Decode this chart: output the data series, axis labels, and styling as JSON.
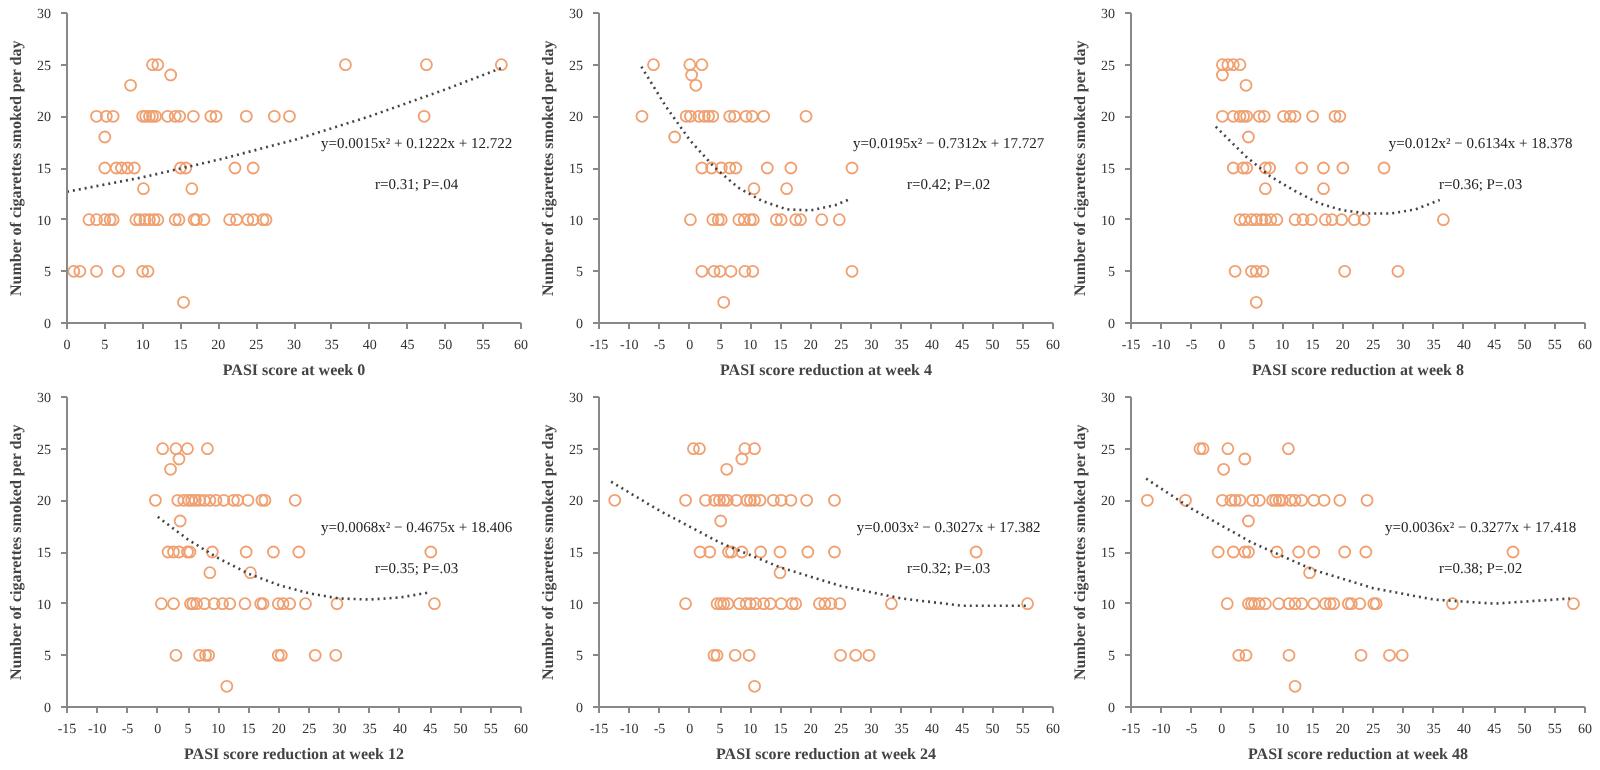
{
  "chart_data": [
    {
      "type": "scatter",
      "xlabel": "PASI score at week 0",
      "ylabel": "Number of cigarettes smoked per day",
      "xlim": [
        0,
        60
      ],
      "xticks": [
        0,
        5,
        10,
        15,
        20,
        25,
        30,
        35,
        40,
        45,
        50,
        55,
        60
      ],
      "ylim": [
        0,
        30
      ],
      "yticks": [
        0,
        5,
        10,
        15,
        20,
        25,
        30
      ],
      "grid": false,
      "annotations": [
        "y=0.0015x² + 0.1222x + 12.722",
        "r=0.31; P=.04"
      ],
      "series": [
        {
          "color": "#f0a070",
          "marker": "circle",
          "x": [
            11.3,
            12.0,
            36.8,
            47.5,
            57.4,
            13.7,
            8.4,
            3.9,
            5.2,
            6.1,
            10,
            10.4,
            10.9,
            11.3,
            11.7,
            13.3,
            14.3,
            14.9,
            16.7,
            19,
            19.7,
            23.7,
            27.4,
            29.4,
            47.2,
            5.0,
            5,
            6.5,
            7.2,
            8,
            8.9,
            15,
            15.7,
            24.6,
            22.2,
            10.1,
            16.5,
            2.9,
            3.9,
            5,
            5.7,
            6.1,
            9.1,
            9.6,
            10.3,
            10.9,
            11.5,
            12,
            14.3,
            14.8,
            16.8,
            17.1,
            18.1,
            21.5,
            22.4,
            23.9,
            24.6,
            25.9,
            26.3,
            0.9,
            1.7,
            3.9,
            6.8,
            10,
            10.7,
            15.4
          ],
          "values": [
            25,
            25,
            25,
            25,
            25,
            24,
            23,
            20,
            20,
            20,
            20,
            20,
            20,
            20,
            20,
            20,
            20,
            20,
            20,
            20,
            20,
            20,
            20,
            20,
            20,
            18,
            15,
            15,
            15,
            15,
            15,
            15,
            15,
            15,
            15,
            13,
            13,
            10,
            10,
            10,
            10,
            10,
            10,
            10,
            10,
            10,
            10,
            10,
            10,
            10,
            10,
            10,
            10,
            10,
            10,
            10,
            10,
            10,
            10,
            5,
            5,
            5,
            5,
            5,
            5,
            2
          ]
        },
        {
          "type": "line",
          "color": "#444444",
          "marker": "none",
          "line_style": "dotted",
          "x": [
            0,
            10,
            20,
            30,
            40,
            50,
            57.5
          ],
          "values": [
            12.7,
            14.1,
            15.8,
            17.7,
            20.0,
            22.6,
            24.7
          ]
        }
      ]
    },
    {
      "type": "scatter",
      "xlabel": "PASI score reduction at week 4",
      "ylabel": "Number of cigarettes smoked per day",
      "xlim": [
        -15,
        60
      ],
      "xticks": [
        -15,
        -10,
        -5,
        0,
        5,
        10,
        15,
        20,
        25,
        30,
        35,
        40,
        45,
        50,
        55,
        60
      ],
      "ylim": [
        0,
        30
      ],
      "yticks": [
        0,
        5,
        10,
        15,
        20,
        25,
        30
      ],
      "grid": false,
      "annotations": [
        "y=0.0195x² − 0.7312x + 17.727",
        "r=0.42; P=.02"
      ],
      "series": [
        {
          "color": "#f0a070",
          "marker": "circle",
          "x": [
            -6,
            0,
            2,
            0.3,
            1.0,
            -7.9,
            -0.6,
            0.1,
            1.5,
            2.4,
            3.1,
            3.8,
            6.6,
            7.4,
            9.3,
            10.3,
            12.2,
            19.2,
            -2.5,
            2,
            3.6,
            5.2,
            6.6,
            7.6,
            12.8,
            16.7,
            26.8,
            10.6,
            16,
            0.1,
            3.8,
            4.7,
            5.2,
            8.1,
            9,
            10,
            10.5,
            14.3,
            15.1,
            17.5,
            18.3,
            21.8,
            24.7,
            2,
            4,
            5,
            6.8,
            9.1,
            10.4,
            26.8,
            5.6
          ],
          "values": [
            25,
            25,
            25,
            24,
            23,
            20,
            20,
            20,
            20,
            20,
            20,
            20,
            20,
            20,
            20,
            20,
            20,
            20,
            18,
            15,
            15,
            15,
            15,
            15,
            15,
            15,
            15,
            13,
            13,
            10,
            10,
            10,
            10,
            10,
            10,
            10,
            10,
            10,
            10,
            10,
            10,
            10,
            10,
            5,
            5,
            5,
            5,
            5,
            5,
            5,
            2
          ]
        },
        {
          "type": "line",
          "color": "#444444",
          "marker": "none",
          "line_style": "dotted",
          "x": [
            -8,
            -4,
            0,
            4,
            8,
            12,
            16,
            20,
            24,
            26.5
          ],
          "values": [
            24.8,
            21.0,
            17.7,
            15.1,
            13.1,
            11.8,
            11.0,
            10.9,
            11.4,
            12.0
          ]
        }
      ]
    },
    {
      "type": "scatter",
      "xlabel": "PASI score reduction at week 8",
      "ylabel": "Number of cigarettes smoked per day",
      "xlim": [
        -15,
        60
      ],
      "xticks": [
        -15,
        -10,
        -5,
        0,
        5,
        10,
        15,
        20,
        25,
        30,
        35,
        40,
        45,
        50,
        55,
        60
      ],
      "ylim": [
        0,
        30
      ],
      "yticks": [
        0,
        5,
        10,
        15,
        20,
        25,
        30
      ],
      "grid": false,
      "annotations": [
        "y=0.012x² − 0.6134x + 18.378",
        "r=0.36; P=.03"
      ],
      "series": [
        {
          "color": "#f0a070",
          "marker": "circle",
          "x": [
            0.1,
            1,
            1.9,
            3,
            0.1,
            4,
            0.1,
            1.9,
            3,
            3.6,
            4.1,
            6.2,
            7,
            10.2,
            11.3,
            12.1,
            15,
            18.7,
            19.5,
            4.4,
            1.9,
            3.5,
            4.1,
            7.2,
            7.9,
            13.2,
            16.8,
            20,
            26.8,
            7.2,
            16.8,
            3,
            3.8,
            4.9,
            5.7,
            6.6,
            7.2,
            8.1,
            9.1,
            12.1,
            13.4,
            14.8,
            17.1,
            18.2,
            19.8,
            21.9,
            23.5,
            36.6,
            2.2,
            4.9,
            5.7,
            6.8,
            20.3,
            29.1,
            5.7
          ],
          "values": [
            25,
            25,
            25,
            25,
            24,
            23,
            20,
            20,
            20,
            20,
            20,
            20,
            20,
            20,
            20,
            20,
            20,
            20,
            20,
            18,
            15,
            15,
            15,
            15,
            15,
            15,
            15,
            15,
            15,
            13,
            13,
            10,
            10,
            10,
            10,
            10,
            10,
            10,
            10,
            10,
            10,
            10,
            10,
            10,
            10,
            10,
            10,
            10,
            5,
            5,
            5,
            5,
            5,
            5,
            2
          ]
        },
        {
          "type": "line",
          "color": "#444444",
          "marker": "none",
          "line_style": "dotted",
          "x": [
            -1,
            4,
            8,
            12,
            16,
            20,
            24,
            28,
            32,
            36
          ],
          "values": [
            19.0,
            16.1,
            14.2,
            12.8,
            11.6,
            10.9,
            10.6,
            10.6,
            11.0,
            11.9
          ]
        }
      ]
    },
    {
      "type": "scatter",
      "xlabel": "PASI score reduction at week 12",
      "ylabel": "Number of cigarettes smoked per day",
      "xlim": [
        -15,
        60
      ],
      "xticks": [
        -15,
        -10,
        -5,
        0,
        5,
        10,
        15,
        20,
        25,
        30,
        35,
        40,
        45,
        50,
        55,
        60
      ],
      "ylim": [
        0,
        30
      ],
      "yticks": [
        0,
        5,
        10,
        15,
        20,
        25,
        30
      ],
      "grid": false,
      "annotations": [
        "y=0.0068x² − 0.4675x + 18.406",
        "r=0.35; P=.03"
      ],
      "series": [
        {
          "color": "#f0a070",
          "marker": "circle",
          "x": [
            0.8,
            3,
            4.9,
            8.2,
            3.5,
            2.1,
            -0.4,
            3.3,
            4.3,
            5.1,
            5.6,
            6.2,
            6.9,
            7.7,
            8.6,
            9.6,
            10.9,
            12.5,
            13.2,
            14.9,
            17.2,
            17.7,
            22.7,
            3.7,
            1.7,
            2.6,
            3.5,
            4.9,
            5.3,
            9,
            14.6,
            19.1,
            23.3,
            45.1,
            8.6,
            15.3,
            0.6,
            2.6,
            5.4,
            5.8,
            6.4,
            7.7,
            9.3,
            10.7,
            11.9,
            14.4,
            17,
            17.4,
            19.9,
            20.7,
            21.8,
            24.4,
            29.6,
            45.7,
            3,
            6.9,
            7.9,
            8.4,
            19.9,
            20.4,
            26,
            29.4,
            11.4
          ],
          "values": [
            25,
            25,
            25,
            25,
            24,
            23,
            20,
            20,
            20,
            20,
            20,
            20,
            20,
            20,
            20,
            20,
            20,
            20,
            20,
            20,
            20,
            20,
            20,
            18,
            15,
            15,
            15,
            15,
            15,
            15,
            15,
            15,
            15,
            15,
            13,
            13,
            10,
            10,
            10,
            10,
            10,
            10,
            10,
            10,
            10,
            10,
            10,
            10,
            10,
            10,
            10,
            10,
            10,
            10,
            5,
            5,
            5,
            5,
            5,
            5,
            5,
            5,
            2
          ]
        },
        {
          "type": "line",
          "color": "#444444",
          "marker": "none",
          "line_style": "dotted",
          "x": [
            0,
            5,
            10,
            15,
            20,
            25,
            30,
            35,
            40,
            45
          ],
          "values": [
            18.4,
            16.2,
            14.4,
            12.9,
            11.8,
            11.0,
            10.5,
            10.4,
            10.6,
            11.1
          ]
        }
      ]
    },
    {
      "type": "scatter",
      "xlabel": "PASI score reduction at week 24",
      "ylabel": "Number of cigarettes smoked per day",
      "xlim": [
        -15,
        60
      ],
      "xticks": [
        -15,
        -10,
        -5,
        0,
        5,
        10,
        15,
        20,
        25,
        30,
        35,
        40,
        45,
        50,
        55,
        60
      ],
      "ylim": [
        0,
        30
      ],
      "yticks": [
        0,
        5,
        10,
        15,
        20,
        25,
        30
      ],
      "grid": false,
      "annotations": [
        "y=0.003x² − 0.3027x + 17.382",
        "r=0.32; P=.03"
      ],
      "series": [
        {
          "color": "#f0a070",
          "marker": "circle",
          "x": [
            0.6,
            1.6,
            9.1,
            10.7,
            8.6,
            6.1,
            -12.4,
            -0.7,
            2.6,
            4.1,
            4.9,
            5.6,
            6.2,
            7.7,
            9.4,
            10,
            10.7,
            11.6,
            13.8,
            15.1,
            16.7,
            19.3,
            23.9,
            5.1,
            1.7,
            3.3,
            6.4,
            6.9,
            8.6,
            11.7,
            14.9,
            19.5,
            23.9,
            47.3,
            14.9,
            -0.7,
            4.5,
            5.1,
            5.6,
            6.3,
            8.2,
            9.3,
            10,
            10.9,
            12.2,
            13.3,
            15.1,
            16.9,
            17.5,
            21.4,
            22.3,
            23.3,
            24.8,
            33.3,
            55.8,
            4,
            4.5,
            7.5,
            9.8,
            24.9,
            27.4,
            29.6,
            10.7
          ],
          "values": [
            25,
            25,
            25,
            25,
            24,
            23,
            20,
            20,
            20,
            20,
            20,
            20,
            20,
            20,
            20,
            20,
            20,
            20,
            20,
            20,
            20,
            20,
            20,
            18,
            15,
            15,
            15,
            15,
            15,
            15,
            15,
            15,
            15,
            15,
            13,
            10,
            10,
            10,
            10,
            10,
            10,
            10,
            10,
            10,
            10,
            10,
            10,
            10,
            10,
            10,
            10,
            10,
            10,
            10,
            10,
            5,
            5,
            5,
            5,
            5,
            5,
            5,
            2
          ]
        },
        {
          "type": "line",
          "color": "#444444",
          "marker": "none",
          "line_style": "dotted",
          "x": [
            -13,
            -5,
            5,
            15,
            25,
            35,
            45,
            56
          ],
          "values": [
            21.8,
            19.0,
            15.9,
            13.5,
            11.7,
            10.5,
            9.8,
            9.8
          ]
        }
      ]
    },
    {
      "type": "scatter",
      "xlabel": "PASI score reduction at week 48",
      "ylabel": "Number of cigarettes smoked per day",
      "xlim": [
        -15,
        60
      ],
      "xticks": [
        -15,
        -10,
        -5,
        0,
        5,
        10,
        15,
        20,
        25,
        30,
        35,
        40,
        45,
        50,
        55,
        60
      ],
      "ylim": [
        0,
        30
      ],
      "yticks": [
        0,
        5,
        10,
        15,
        20,
        25,
        30
      ],
      "grid": false,
      "annotations": [
        "y=0.0036x² − 0.3277x + 17.418",
        "r=0.38; P=.02"
      ],
      "series": [
        {
          "color": "#f0a070",
          "marker": "circle",
          "x": [
            -3.6,
            -3.1,
            1,
            11,
            3.8,
            0.3,
            -12.3,
            -6,
            0.1,
            1.5,
            2.2,
            3,
            5.1,
            6.2,
            8.4,
            8.9,
            9.5,
            10,
            11.3,
            12.1,
            13.2,
            15.2,
            16.9,
            19.5,
            24,
            4.4,
            -0.6,
            1.9,
            3.8,
            4.4,
            9.1,
            12.7,
            15.2,
            20.3,
            23.8,
            48.1,
            14.5,
            0.9,
            4.4,
            4.9,
            5.4,
            6.2,
            7.2,
            9.4,
            11.1,
            12.1,
            13.2,
            15.2,
            17.1,
            17.9,
            18.5,
            20.9,
            21.4,
            22.8,
            25.1,
            25.5,
            38.1,
            58.1,
            2.8,
            4,
            11.1,
            23,
            27.7,
            29.8,
            12.1
          ],
          "values": [
            25,
            25,
            25,
            25,
            24,
            23,
            20,
            20,
            20,
            20,
            20,
            20,
            20,
            20,
            20,
            20,
            20,
            20,
            20,
            20,
            20,
            20,
            20,
            20,
            20,
            18,
            15,
            15,
            15,
            15,
            15,
            15,
            15,
            15,
            15,
            15,
            13,
            10,
            10,
            10,
            10,
            10,
            10,
            10,
            10,
            10,
            10,
            10,
            10,
            10,
            10,
            10,
            10,
            10,
            10,
            10,
            10,
            10,
            5,
            5,
            5,
            5,
            5,
            5,
            2
          ]
        },
        {
          "type": "line",
          "color": "#444444",
          "marker": "none",
          "line_style": "dotted",
          "x": [
            -12.5,
            -5,
            5,
            15,
            25,
            35,
            45,
            57.5
          ],
          "values": [
            22.1,
            19.2,
            15.9,
            13.3,
            11.5,
            10.4,
            10.0,
            10.5
          ]
        }
      ]
    }
  ]
}
